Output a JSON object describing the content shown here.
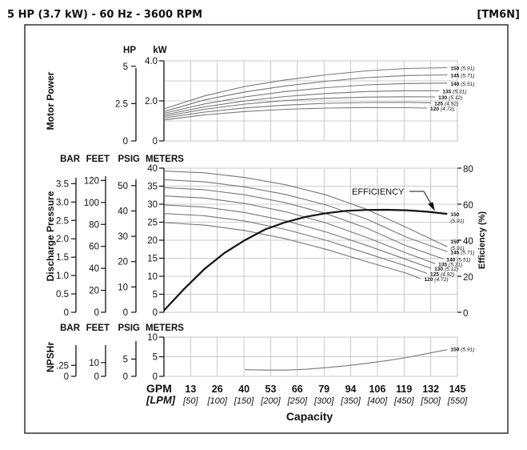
{
  "header": {
    "left": "5 HP (3.7 kW) - 60 Hz - 3600 RPM",
    "right": "[TM6N]"
  },
  "chart_data": [
    {
      "id": "motor-power",
      "type": "line",
      "ylabel": "Motor Power",
      "units": {
        "hp": "HP",
        "kw": "kW"
      },
      "ylim": [
        0,
        4.0
      ],
      "xlim": [
        0,
        145
      ],
      "y_ticks_kw": [
        "0",
        "2.0",
        "4.0"
      ],
      "y_ticks_hp": [
        "0",
        "2.5",
        "5"
      ],
      "series": [
        {
          "name": "150",
          "diam": "(5.91)",
          "x": [
            0,
            20,
            40,
            60,
            80,
            100,
            120,
            140
          ],
          "y": [
            1.6,
            2.25,
            2.72,
            3.05,
            3.3,
            3.5,
            3.62,
            3.66
          ]
        },
        {
          "name": "145",
          "diam": "(5.71)",
          "x": [
            0,
            20,
            40,
            60,
            80,
            100,
            120,
            140
          ],
          "y": [
            1.47,
            2.05,
            2.45,
            2.75,
            2.98,
            3.16,
            3.27,
            3.3
          ]
        },
        {
          "name": "140",
          "diam": "(5.51)",
          "x": [
            0,
            20,
            40,
            60,
            80,
            100,
            120,
            140
          ],
          "y": [
            1.38,
            1.85,
            2.2,
            2.47,
            2.66,
            2.8,
            2.87,
            2.89
          ]
        },
        {
          "name": "135",
          "diam": "(5.31)",
          "x": [
            0,
            20,
            40,
            60,
            80,
            100,
            120,
            136
          ],
          "y": [
            1.3,
            1.7,
            2.0,
            2.22,
            2.37,
            2.47,
            2.51,
            2.51
          ]
        },
        {
          "name": "130",
          "diam": "(5.12)",
          "x": [
            0,
            20,
            40,
            60,
            80,
            100,
            120,
            134
          ],
          "y": [
            1.22,
            1.58,
            1.84,
            2.02,
            2.13,
            2.19,
            2.21,
            2.2
          ]
        },
        {
          "name": "125",
          "diam": "(4.92)",
          "x": [
            0,
            20,
            40,
            60,
            80,
            100,
            120,
            132
          ],
          "y": [
            1.14,
            1.44,
            1.65,
            1.79,
            1.88,
            1.92,
            1.93,
            1.91
          ]
        },
        {
          "name": "120",
          "diam": "(4.72)",
          "x": [
            0,
            20,
            40,
            60,
            80,
            100,
            120,
            130
          ],
          "y": [
            1.05,
            1.3,
            1.47,
            1.58,
            1.64,
            1.67,
            1.66,
            1.64
          ]
        }
      ]
    },
    {
      "id": "discharge-pressure",
      "type": "line",
      "ylabel": "Discharge Pressure",
      "y2label": "Efficiency (%)",
      "units": {
        "bar": "BAR",
        "feet": "FEET",
        "psig": "PSIG",
        "meters": "METERS"
      },
      "ylim": [
        0,
        40
      ],
      "y2lim": [
        0,
        80
      ],
      "xlim": [
        0,
        145
      ],
      "y_ticks_meters": [
        "0",
        "5",
        "10",
        "15",
        "20",
        "25",
        "30",
        "35",
        "40"
      ],
      "y_ticks_psig": [
        "0",
        "10",
        "20",
        "30",
        "40",
        "50"
      ],
      "y_ticks_feet": [
        "0",
        "20",
        "40",
        "60",
        "80",
        "100",
        "120"
      ],
      "y_ticks_bar": [
        "0",
        "0.5",
        "1.0",
        "1.5",
        "2.0",
        "2.5",
        "3.0",
        "3.5"
      ],
      "y2_ticks": [
        "0",
        "20",
        "40",
        "60",
        "80"
      ],
      "series": [
        {
          "name": "150",
          "diam": "(5.91)",
          "x": [
            0,
            20,
            40,
            60,
            80,
            100,
            120,
            140
          ],
          "y": [
            39.2,
            38.7,
            37.4,
            35.4,
            32.6,
            28.6,
            23.5,
            18.2
          ]
        },
        {
          "name": "145",
          "diam": "(5.71)",
          "x": [
            0,
            20,
            40,
            60,
            80,
            100,
            120,
            140
          ],
          "y": [
            36.8,
            36.2,
            34.8,
            32.7,
            29.8,
            25.9,
            20.8,
            16.8
          ]
        },
        {
          "name": "140",
          "diam": "(5.51)",
          "x": [
            0,
            20,
            40,
            60,
            80,
            100,
            120,
            138
          ],
          "y": [
            34.6,
            34.0,
            32.6,
            30.4,
            27.4,
            23.4,
            18.4,
            14.8
          ]
        },
        {
          "name": "135",
          "diam": "(5.31)",
          "x": [
            0,
            20,
            40,
            60,
            80,
            100,
            120,
            134
          ],
          "y": [
            32.3,
            31.7,
            30.2,
            27.9,
            24.8,
            20.8,
            16.4,
            13.5
          ]
        },
        {
          "name": "130",
          "diam": "(5.12)",
          "x": [
            0,
            20,
            40,
            60,
            80,
            100,
            120,
            132
          ],
          "y": [
            29.8,
            29.2,
            27.7,
            25.4,
            22.3,
            18.6,
            14.6,
            12.2
          ]
        },
        {
          "name": "125",
          "diam": "(4.92)",
          "x": [
            0,
            20,
            40,
            60,
            80,
            100,
            120,
            130
          ],
          "y": [
            27.4,
            26.8,
            25.3,
            23.0,
            20.0,
            16.4,
            12.8,
            10.8
          ]
        },
        {
          "name": "120",
          "diam": "(4.72)",
          "x": [
            0,
            20,
            40,
            60,
            80,
            100,
            120,
            127
          ],
          "y": [
            24.9,
            24.2,
            22.7,
            20.4,
            17.5,
            14.1,
            10.8,
            9.3
          ]
        }
      ],
      "efficiency": {
        "name": "EFFICIENCY",
        "label": "150",
        "diam": "(5.91)",
        "x": [
          0,
          10,
          20,
          30,
          40,
          50,
          60,
          70,
          80,
          90,
          100,
          110,
          120,
          130,
          140
        ],
        "y": [
          1,
          13,
          24,
          33,
          40,
          46,
          50,
          53,
          55,
          56.3,
          56.8,
          56.9,
          56.6,
          55.8,
          54.6
        ]
      }
    },
    {
      "id": "npshr",
      "type": "line",
      "ylabel": "NPSHr",
      "units": {
        "bar": "BAR",
        "feet": "FEET",
        "psig": "PSIG",
        "meters": "METERS"
      },
      "ylim": [
        0,
        10
      ],
      "xlim": [
        0,
        145
      ],
      "y_ticks_meters": [
        "0",
        "5",
        "10"
      ],
      "y_ticks_psig": [
        "0",
        "5"
      ],
      "y_ticks_feet": [
        "0",
        "10"
      ],
      "y_ticks_bar": [
        "0",
        ".25"
      ],
      "series": [
        {
          "name": "150",
          "diam": "(5.91)",
          "x": [
            40,
            50,
            60,
            70,
            80,
            90,
            100,
            110,
            120,
            130,
            140
          ],
          "y": [
            1.7,
            1.6,
            1.6,
            1.8,
            2.2,
            2.7,
            3.3,
            4.0,
            4.8,
            5.8,
            6.8
          ]
        }
      ]
    }
  ],
  "x_axis": {
    "gpm_label": "GPM",
    "lpm_label": "[LPM]",
    "gpm_ticks": [
      "13",
      "26",
      "40",
      "53",
      "66",
      "79",
      "94",
      "106",
      "119",
      "132",
      "145"
    ],
    "lpm_ticks": [
      "[50]",
      "[100]",
      "[150]",
      "[200]",
      "[250]",
      "[300]",
      "[350]",
      "[400]",
      "[450]",
      "[500]",
      "[550]"
    ],
    "title": "Capacity"
  }
}
